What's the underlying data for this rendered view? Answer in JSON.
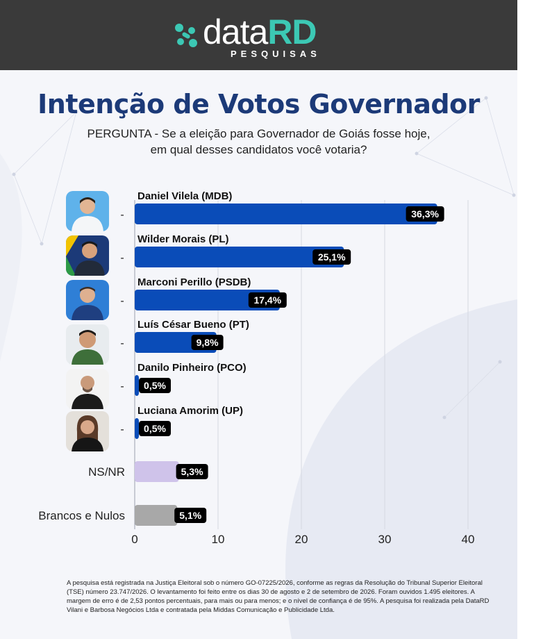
{
  "header": {
    "logo_data": "data",
    "logo_rd": "RD",
    "logo_sub": "PESQUISAS"
  },
  "title": "Intenção de Votos Governador",
  "question_line1": "PERGUNTA - Se a eleição para Governador de Goiás fosse hoje,",
  "question_line2": "em qual desses candidatos você votaria?",
  "colors": {
    "accent": "#1c3a78",
    "bar_blue": "#0a4cb8",
    "bar_nsnr": "#cfc3ea",
    "bar_brancos": "#a8a8a8",
    "label_bg": "#000000",
    "brand_teal": "#3cc8b4"
  },
  "chart_data": {
    "type": "bar",
    "orientation": "horizontal",
    "categories": [
      "Daniel Vilela (MDB)",
      "Wilder Morais (PL)",
      "Marconi Perillo (PSDB)",
      "Luís César Bueno (PT)",
      "Danilo Pinheiro (PCO)",
      "Luciana Amorim (UP)",
      "NS/NR",
      "Brancos e Nulos"
    ],
    "values": [
      36.3,
      25.1,
      17.4,
      9.8,
      0.5,
      0.5,
      5.3,
      5.1
    ],
    "value_labels": [
      "36,3%",
      "25,1%",
      "17,4%",
      "9,8%",
      "0,5%",
      "0,5%",
      "5,3%",
      "5,1%"
    ],
    "row_prefix": [
      "-",
      "-",
      "-",
      "-",
      "-",
      "-",
      "",
      ""
    ],
    "xticks": [
      "0",
      "10",
      "20",
      "30",
      "40"
    ],
    "xlim": [
      0,
      40
    ],
    "grid": true
  },
  "footnote": "A pesquisa está registrada na Justiça Eleitoral sob o número GO-07225/2026, conforme as regras da Resolução do Tribunal Superior Eleitoral (TSE) número 23.747/2026. O levantamento foi feito entre os dias 30 de agosto e 2 de setembro de 2026. Foram ouvidos 1.495 eleitores. A margem de erro é de 2,53 pontos percentuais, para mais ou para menos; e o nível de confiança é de 95%. A pesquisa foi realizada pela DataRD Vilani e Barbosa Negócios Ltda e contratada pela Middas Comunicação e Publicidade Ltda."
}
